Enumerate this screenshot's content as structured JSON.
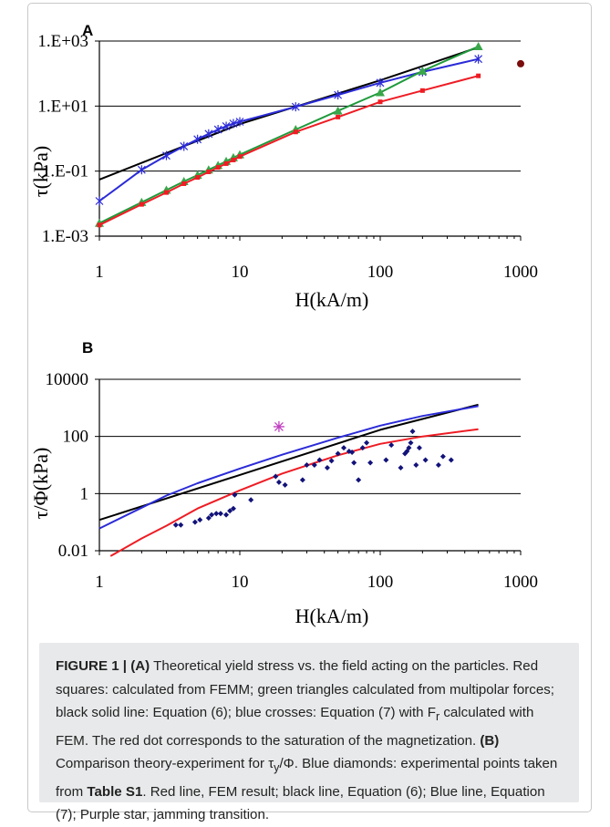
{
  "figure": {
    "caption": {
      "label": "FIGURE 1 |",
      "a_marker": "(A)",
      "a_text_1": " Theoretical yield stress vs. the field acting on the particles. Red squares: calculated from FEMM; green triangles calculated from multipolar forces; black solid line: Equation (6); blue crosses: Equation (7) with F",
      "a_sub": "r",
      "a_text_2": " calculated with FEM. The red dot corresponds to the saturation of the magnetization. ",
      "b_marker": "(B)",
      "b_text_1": " Comparison theory-experiment for τ",
      "b_sub": "y",
      "b_text_2": "/Φ. Blue diamonds: experimental points taken from ",
      "b_table": "Table S1",
      "b_text_3": ". Red line, FEM result; black line, Equation (6); Blue line, Equation (7); Purple star, jamming transition."
    }
  },
  "colors": {
    "red": "#ee1c24",
    "green": "#1f9a3b",
    "green_marker": "#3aa64a",
    "black": "#000000",
    "blue": "#2b2bd8",
    "dark_red": "#7a0c0c",
    "navy": "#12127a",
    "purple": "#c040c0"
  },
  "chart_data": [
    {
      "panel": "A",
      "type": "line",
      "title": "",
      "xlabel": "H(kA/m)",
      "ylabel": "τ(kPa)",
      "xscale": "log",
      "yscale": "log",
      "xlim": [
        1,
        1000
      ],
      "ylim": [
        0.001,
        1000
      ],
      "xticks": [
        1,
        10,
        100,
        1000
      ],
      "xtick_labels": [
        "1",
        "10",
        "100",
        "1000"
      ],
      "yticks": [
        0.001,
        0.1,
        10,
        1000
      ],
      "ytick_labels": [
        "1.E-03",
        "1.E-01",
        "1.E+01",
        "1.E+03"
      ],
      "grid": "horizontal",
      "series": [
        {
          "key": "black",
          "style": "line",
          "color": "#000000",
          "x": [
            1,
            10,
            100,
            500
          ],
          "y": [
            0.055,
            2.8,
            62,
            640
          ]
        },
        {
          "key": "blue",
          "style": "line+x",
          "color": "#2b2bd8",
          "x": [
            1,
            2,
            3,
            4,
            5,
            6,
            7,
            8,
            9,
            10,
            25,
            50,
            100,
            200,
            500
          ],
          "y": [
            0.012,
            0.11,
            0.3,
            0.58,
            0.95,
            1.4,
            1.9,
            2.4,
            2.9,
            3.3,
            9.5,
            22,
            52,
            112,
            280
          ]
        },
        {
          "key": "green",
          "style": "line+triangle",
          "color": "#1f9a3b",
          "marker_color": "#3aa64a",
          "x": [
            1,
            2,
            3,
            4,
            5,
            6,
            7,
            8,
            9,
            10,
            25,
            50,
            100,
            200,
            500
          ],
          "y": [
            0.0025,
            0.011,
            0.026,
            0.048,
            0.075,
            0.11,
            0.15,
            0.2,
            0.26,
            0.32,
            1.9,
            7.1,
            26,
            120,
            680
          ]
        },
        {
          "key": "red",
          "style": "line+square",
          "color": "#ee1c24",
          "x": [
            1,
            2,
            3,
            4,
            5,
            6,
            7,
            8,
            9,
            10,
            25,
            50,
            100,
            200,
            500
          ],
          "y": [
            0.0022,
            0.0095,
            0.022,
            0.041,
            0.064,
            0.095,
            0.13,
            0.17,
            0.22,
            0.28,
            1.6,
            4.6,
            13.5,
            30,
            85
          ]
        },
        {
          "key": "dark_red_dot",
          "style": "point",
          "color": "#7a0c0c",
          "x": [
            1000
          ],
          "y": [
            200
          ]
        }
      ]
    },
    {
      "panel": "B",
      "type": "line",
      "title": "",
      "xlabel": "H(kA/m)",
      "ylabel": "τ/Φ(kPa)",
      "xscale": "log",
      "yscale": "log",
      "xlim": [
        1,
        1000
      ],
      "ylim": [
        0.01,
        10000
      ],
      "xticks": [
        1,
        10,
        100,
        1000
      ],
      "xtick_labels": [
        "1",
        "10",
        "100",
        "1000"
      ],
      "yticks": [
        0.01,
        1,
        100,
        10000
      ],
      "ytick_labels": [
        "0.01",
        "1",
        "100",
        "10000"
      ],
      "grid": "horizontal",
      "series": [
        {
          "key": "black",
          "style": "line",
          "color": "#000000",
          "x": [
            1,
            10,
            100,
            500
          ],
          "y": [
            0.12,
            4.5,
            170,
            1300
          ]
        },
        {
          "key": "blue",
          "style": "line",
          "color": "#2b2bd8",
          "x": [
            1,
            2,
            3,
            5,
            10,
            20,
            50,
            100,
            200,
            500
          ],
          "y": [
            0.06,
            0.32,
            0.85,
            2.3,
            7.5,
            23,
            90,
            240,
            520,
            1150
          ]
        },
        {
          "key": "red",
          "style": "line",
          "color": "#ee1c24",
          "x": [
            1.2,
            2,
            3,
            5,
            10,
            20,
            50,
            100,
            200,
            500
          ],
          "y": [
            0.0065,
            0.027,
            0.075,
            0.3,
            1.3,
            5,
            22,
            55,
            100,
            180
          ]
        },
        {
          "key": "purple_star",
          "style": "star",
          "color": "#c040c0",
          "x": [
            19
          ],
          "y": [
            220
          ]
        },
        {
          "key": "diamonds",
          "style": "diamond",
          "color": "#12127a",
          "x": [
            3.5,
            3.8,
            4.8,
            5.2,
            6,
            6.3,
            6.8,
            7.3,
            8,
            8.5,
            9,
            9.2,
            12,
            18,
            19,
            21,
            28,
            30,
            34,
            37,
            42,
            45,
            50,
            55,
            60,
            63,
            65,
            70,
            75,
            80,
            85,
            110,
            120,
            140,
            150,
            155,
            160,
            165,
            170,
            180,
            190,
            210,
            260,
            280,
            320
          ],
          "y": [
            0.08,
            0.08,
            0.1,
            0.12,
            0.14,
            0.18,
            0.2,
            0.2,
            0.18,
            0.25,
            0.3,
            0.9,
            0.6,
            4,
            2.5,
            2,
            3,
            10,
            10,
            15,
            8,
            14,
            25,
            40,
            30,
            28,
            12,
            3,
            40,
            60,
            12,
            15,
            50,
            8,
            25,
            30,
            40,
            60,
            150,
            10,
            40,
            15,
            10,
            20,
            15
          ]
        }
      ]
    }
  ]
}
